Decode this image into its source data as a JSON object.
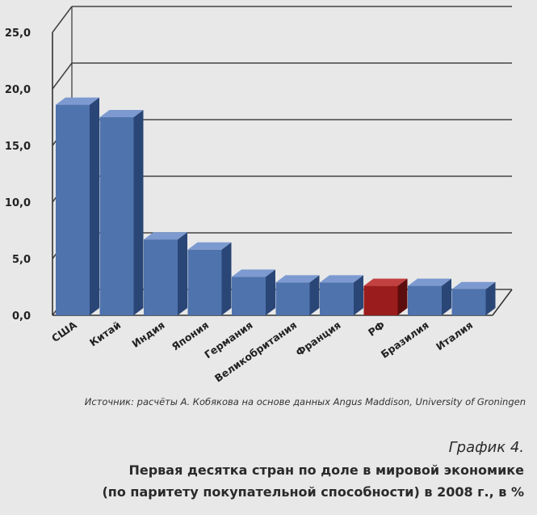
{
  "chart_data": {
    "type": "bar",
    "categories": [
      "США",
      "Китай",
      "Индия",
      "Япония",
      "Германия",
      "Великобритания",
      "Франция",
      "РФ",
      "Бразилия",
      "Италия"
    ],
    "values": [
      18.6,
      17.5,
      6.7,
      5.8,
      3.4,
      2.9,
      2.9,
      2.6,
      2.6,
      2.3
    ],
    "highlight_category": "РФ",
    "ytick_labels": [
      "0,0",
      "5,0",
      "10,0",
      "15,0",
      "20,0",
      "25,0"
    ],
    "ylim": [
      0,
      25
    ],
    "grid": true,
    "colors": {
      "bar_front": "#4f73ad",
      "bar_side": "#2a4676",
      "bar_top": "#7c9ad0",
      "highlight_front": "#9b1c1c",
      "highlight_side": "#5c0d0d",
      "highlight_top": "#c24040"
    }
  },
  "source": "Источник: расчёты А. Кобякова на основе данных Angus Maddison, University of Groningen",
  "figure_label": "График 4.",
  "title_line1": "Первая десятка стран по доле в мировой экономике",
  "title_line2": "(по паритету покупательной способности) в 2008 г., в %"
}
